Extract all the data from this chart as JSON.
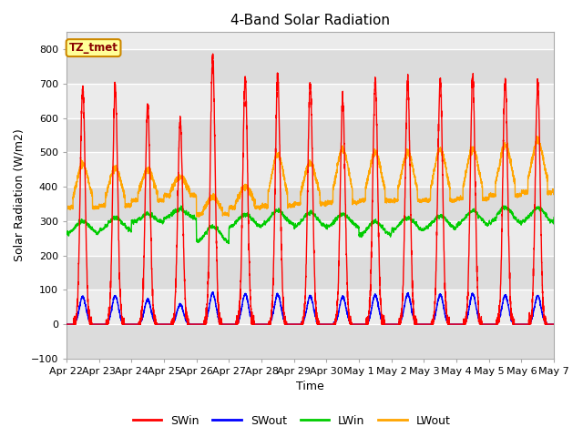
{
  "title": "4-Band Solar Radiation",
  "xlabel": "Time",
  "ylabel": "Solar Radiation (W/m2)",
  "ylim": [
    -100,
    850
  ],
  "yticks": [
    -100,
    0,
    100,
    200,
    300,
    400,
    500,
    600,
    700,
    800
  ],
  "legend_label": "TZ_tmet",
  "series_colors": {
    "SWin": "#ff0000",
    "SWout": "#0000ff",
    "LWin": "#00cc00",
    "LWout": "#ffa500"
  },
  "background_color": "#ffffff",
  "plot_bg_stripes": [
    "#dcdcdc",
    "#ebebeb"
  ],
  "grid_color": "#ffffff",
  "n_days": 15,
  "xtick_labels": [
    "Apr 22",
    "Apr 23",
    "Apr 24",
    "Apr 25",
    "Apr 26",
    "Apr 27",
    "Apr 28",
    "Apr 29",
    "Apr 30",
    "May 1",
    "May 2",
    "May 3",
    "May 4",
    "May 5",
    "May 6",
    "May 7"
  ],
  "swin_peaks": [
    690,
    685,
    635,
    590,
    770,
    715,
    720,
    700,
    650,
    705,
    705,
    710,
    715,
    705,
    700
  ],
  "swout_peaks": [
    80,
    82,
    72,
    58,
    90,
    88,
    87,
    82,
    80,
    85,
    88,
    86,
    88,
    84,
    83
  ],
  "lwin_base": [
    260,
    270,
    295,
    305,
    235,
    280,
    285,
    280,
    280,
    255,
    270,
    275,
    285,
    290,
    293
  ],
  "lwin_amp": [
    40,
    40,
    25,
    30,
    50,
    40,
    45,
    45,
    40,
    45,
    40,
    40,
    45,
    50,
    45
  ],
  "lwout_peak": [
    465,
    455,
    450,
    430,
    370,
    400,
    495,
    470,
    510,
    500,
    500,
    510,
    510,
    520,
    535
  ],
  "lwout_night": [
    340,
    345,
    360,
    375,
    320,
    340,
    345,
    350,
    355,
    360,
    360,
    360,
    365,
    375,
    385
  ]
}
